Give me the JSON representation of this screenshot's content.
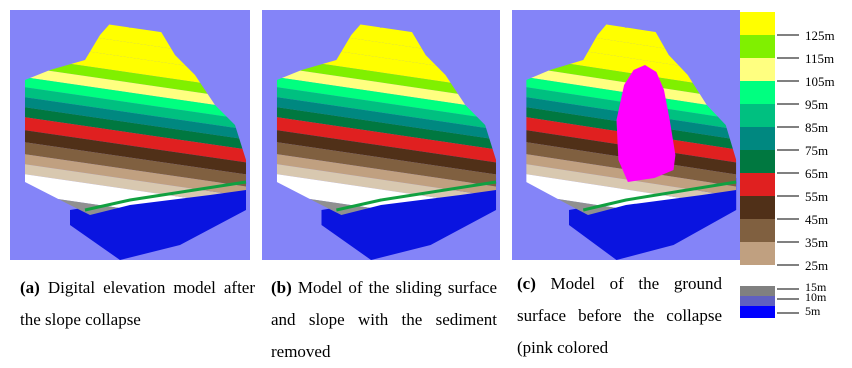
{
  "figure": {
    "panels": [
      {
        "label": "(a)",
        "caption": "Digital elevation model after the slope collapse"
      },
      {
        "label": "(b)",
        "caption": "Model of the sliding surface and slope with the sediment removed"
      },
      {
        "label": "(c)",
        "caption": "Model of the ground surface before the collapse (pink colored"
      }
    ],
    "legend": {
      "upper": [
        {
          "color": "#ffff00"
        },
        {
          "color": "#80f000",
          "label": "125m"
        },
        {
          "color": "#ffff80",
          "label": "115m"
        },
        {
          "color": "#00ff80",
          "label": "105m"
        },
        {
          "color": "#00c080",
          "label": "95m"
        },
        {
          "color": "#008880",
          "label": "85m"
        },
        {
          "color": "#007840",
          "label": "75m"
        },
        {
          "color": "#e02020",
          "label": "65m"
        },
        {
          "color": "#503018",
          "label": "55m"
        },
        {
          "color": "#806040",
          "label": "45m"
        },
        {
          "color": "#c0a080",
          "label": "35m"
        }
      ],
      "bottom_label": "25m",
      "lower": [
        {
          "color": "#808080",
          "label": "15m"
        },
        {
          "color": "#6060c0",
          "label": "10m"
        },
        {
          "color": "#0000ff",
          "label": "5m"
        }
      ]
    }
  }
}
